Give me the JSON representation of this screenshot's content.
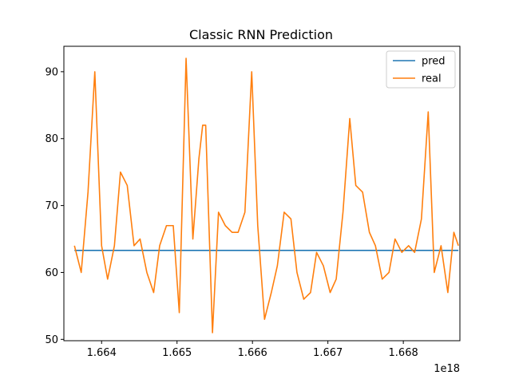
{
  "chart_data": {
    "type": "line",
    "title": "Classic RNN Prediction",
    "xlabel": "",
    "ylabel": "",
    "x_offset_label": "1e18",
    "xlim": [
      1.6635,
      1.66875
    ],
    "ylim": [
      49.8,
      93.8
    ],
    "x_ticks": [
      1.664,
      1.665,
      1.666,
      1.667,
      1.668
    ],
    "x_tick_labels": [
      "1.664",
      "1.665",
      "1.666",
      "1.667",
      "1.668"
    ],
    "y_ticks": [
      50,
      60,
      70,
      80,
      90
    ],
    "y_tick_labels": [
      "50",
      "60",
      "70",
      "80",
      "90"
    ],
    "grid": false,
    "legend_position": "upper right",
    "series": [
      {
        "name": "pred",
        "color": "#1f77b4",
        "x": [
          1.66364,
          1.66873
        ],
        "y": [
          63.3,
          63.3
        ]
      },
      {
        "name": "real",
        "color": "#ff7f0e",
        "x": [
          1.66364,
          1.66373,
          1.66382,
          1.66391,
          1.664,
          1.66408,
          1.66417,
          1.66425,
          1.66434,
          1.66443,
          1.66451,
          1.6646,
          1.66469,
          1.66477,
          1.66486,
          1.66495,
          1.66503,
          1.66512,
          1.66521,
          1.66529,
          1.66534,
          1.66538,
          1.66547,
          1.66555,
          1.66564,
          1.66573,
          1.66581,
          1.6659,
          1.66599,
          1.66607,
          1.66616,
          1.66625,
          1.66633,
          1.66642,
          1.66651,
          1.66659,
          1.66668,
          1.66677,
          1.66685,
          1.66694,
          1.66703,
          1.66711,
          1.6672,
          1.66729,
          1.66737,
          1.66746,
          1.66755,
          1.66763,
          1.66772,
          1.66781,
          1.66789,
          1.66798,
          1.66807,
          1.66815,
          1.66824,
          1.66833,
          1.66841,
          1.6685,
          1.66859,
          1.66867,
          1.66873
        ],
        "y": [
          64,
          60,
          72,
          90,
          64,
          59,
          64,
          75,
          73,
          64,
          65,
          60,
          57,
          64,
          67,
          67,
          54,
          92,
          65,
          77,
          82,
          82,
          51,
          69,
          67,
          66,
          66,
          69,
          90,
          67,
          53,
          57,
          61,
          69,
          68,
          60,
          56,
          57,
          63,
          61,
          57,
          59,
          69,
          83,
          73,
          72,
          66,
          64,
          59,
          60,
          65,
          63,
          64,
          63,
          68,
          84,
          60,
          64,
          57,
          66,
          64
        ]
      }
    ]
  }
}
